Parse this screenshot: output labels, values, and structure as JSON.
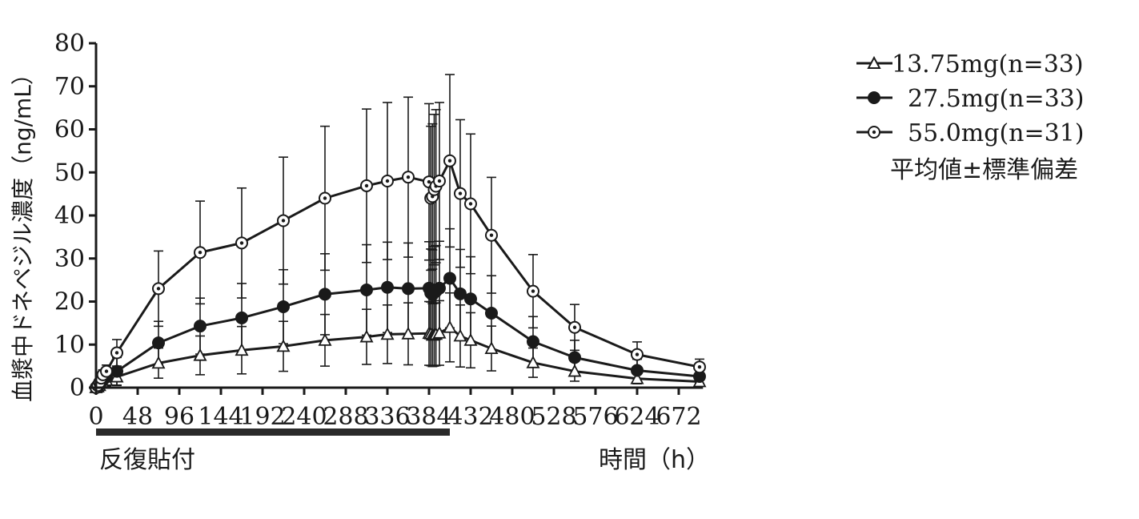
{
  "chart_data": {
    "type": "line",
    "ylabel": "血漿中ドネペジル濃度（ng/mL）",
    "xlabel": "時間（h）",
    "ylim": [
      0,
      80
    ],
    "xlim": [
      0,
      700
    ],
    "y_ticks": [
      "0",
      "10",
      "20",
      "30",
      "40",
      "50",
      "60",
      "70",
      "80"
    ],
    "x_ticks": [
      "0",
      "48",
      "96",
      "144",
      "192",
      "240",
      "288",
      "336",
      "384",
      "432",
      "480",
      "528",
      "576",
      "624",
      "672"
    ],
    "grid": false,
    "legend_position": "top-right",
    "legend_note": "平均値±標準偏差",
    "dosing_period": {
      "label": "反復貼付",
      "start": 0,
      "end": 408
    },
    "x": [
      0,
      2,
      4,
      6,
      8,
      12,
      24,
      72,
      120,
      168,
      216,
      264,
      312,
      336,
      360,
      384,
      386,
      388,
      390,
      392,
      396,
      408,
      420,
      432,
      456,
      504,
      552,
      624,
      696
    ],
    "series": [
      {
        "name": "13.75mg(n=33)",
        "marker": "open-triangle",
        "values": [
          0,
          0.2,
          0.5,
          1,
          1.3,
          1.7,
          2.5,
          5.7,
          7.5,
          8.7,
          9.6,
          11,
          11.8,
          12.4,
          12.5,
          12.6,
          12.5,
          12.2,
          12.3,
          12.4,
          12.7,
          14,
          12,
          11,
          9.1,
          5.8,
          3.8,
          2.1,
          1.4
        ],
        "sd": [
          0,
          0.3,
          0.5,
          0.8,
          1,
          1.4,
          2,
          3.5,
          4.5,
          5.5,
          5.8,
          6,
          6.4,
          6.8,
          7.2,
          7.4,
          7.4,
          7.3,
          7.3,
          7.3,
          7.5,
          8,
          7.2,
          6.4,
          5.2,
          3.4,
          2.3,
          1.2,
          0.8
        ]
      },
      {
        "name": "27.5mg(n=33)",
        "marker": "filled-circle",
        "values": [
          0,
          0.3,
          0.8,
          1.4,
          1.8,
          2.5,
          3.8,
          10.4,
          14.3,
          16.2,
          18.8,
          21.7,
          22.7,
          23.3,
          23,
          23.1,
          22,
          21.6,
          22.3,
          22.4,
          23.1,
          25.4,
          21.8,
          20.6,
          17.3,
          10.7,
          7,
          4,
          2.6
        ],
        "sd": [
          0,
          0.4,
          0.8,
          1.2,
          1.6,
          2.1,
          3.2,
          5,
          6.5,
          8,
          8.6,
          9.4,
          10.5,
          10.5,
          10.6,
          10.8,
          10.2,
          10.4,
          10.5,
          10.6,
          10.9,
          11.5,
          10.3,
          9.8,
          8.7,
          5.8,
          4,
          2.6,
          1.6
        ]
      },
      {
        "name": "55.0mg(n=31)",
        "marker": "open-circle",
        "values": [
          0,
          0.5,
          1.2,
          2.2,
          3,
          3.8,
          8.1,
          23,
          31.4,
          33.6,
          38.8,
          44,
          46.9,
          48,
          48.9,
          47.8,
          44,
          44.4,
          46,
          46.8,
          48,
          52.7,
          45.1,
          42.7,
          35.4,
          22.4,
          14,
          7.7,
          4.8
        ]
      }
    ]
  }
}
